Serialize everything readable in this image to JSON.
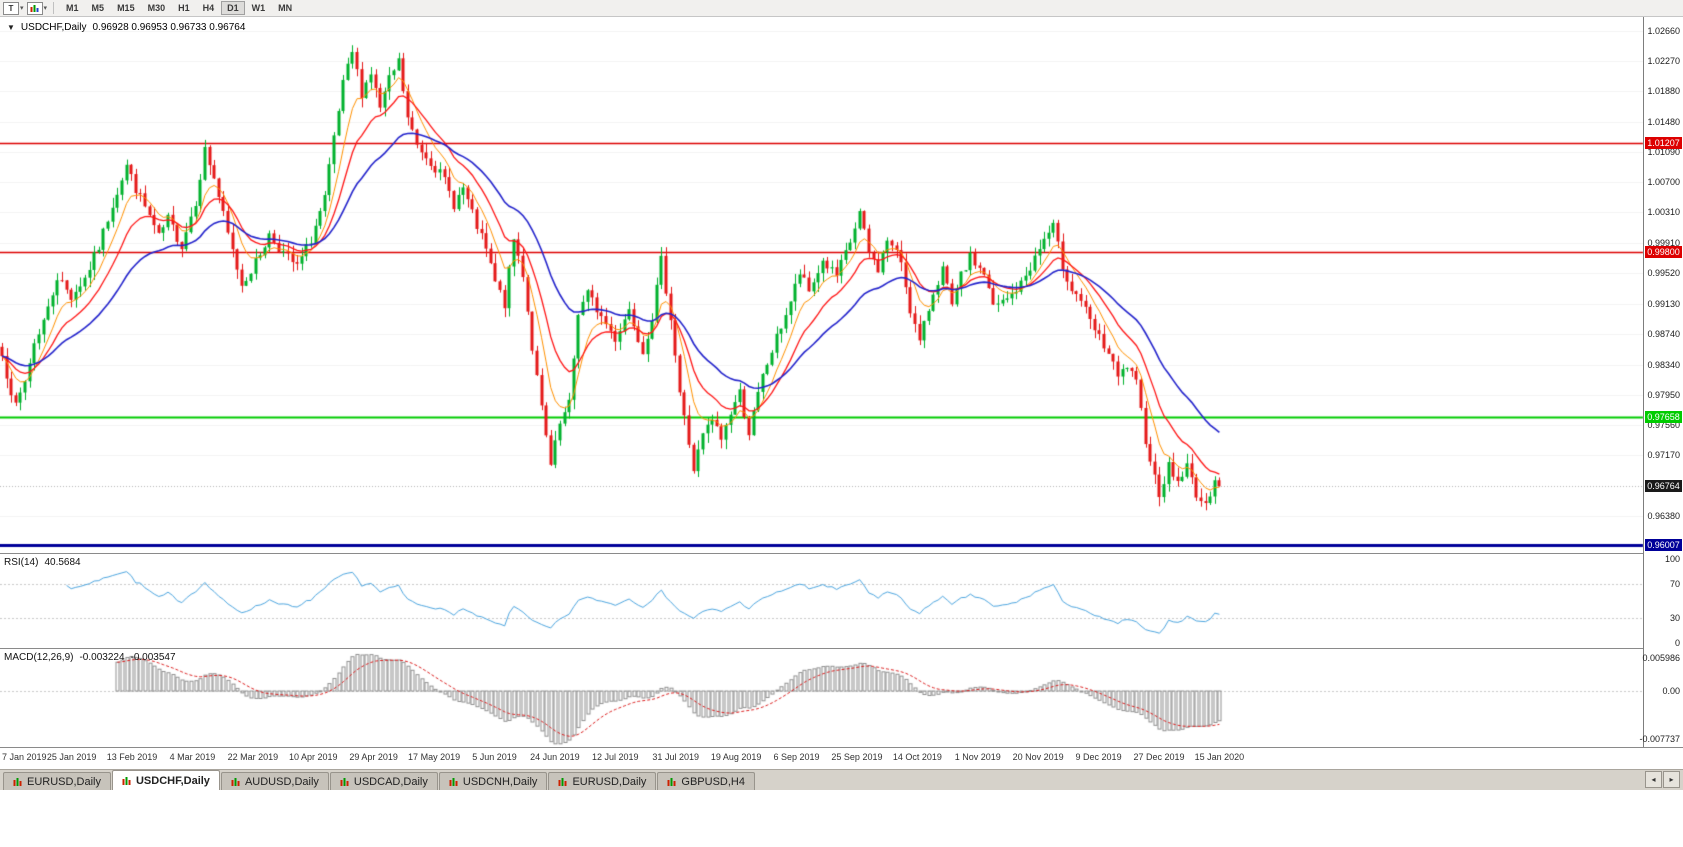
{
  "toolbar": {
    "templates_label": "T",
    "timeframes": [
      {
        "label": "M1",
        "active": false
      },
      {
        "label": "M5",
        "active": false
      },
      {
        "label": "M15",
        "active": false
      },
      {
        "label": "M30",
        "active": false
      },
      {
        "label": "H1",
        "active": false
      },
      {
        "label": "H4",
        "active": false
      },
      {
        "label": "D1",
        "active": true
      },
      {
        "label": "W1",
        "active": false
      },
      {
        "label": "MN",
        "active": false
      }
    ]
  },
  "icons": {
    "one_click_trading": "▼",
    "caret_down": "▾",
    "tab_scroll_left": "◂",
    "tab_scroll_right": "▸"
  },
  "main_chart": {
    "symbol": "USDCHF,Daily",
    "ohlc": "0.96928 0.96953 0.96733 0.96764"
  },
  "rsi_panel": {
    "name": "RSI(14)",
    "value": "40.5684"
  },
  "macd_panel": {
    "name": "MACD(12,26,9)",
    "value_macd": "-0.003224",
    "value_signal": "-0.003547"
  },
  "tabs": [
    {
      "label": "EURUSD,Daily",
      "active": false
    },
    {
      "label": "USDCHF,Daily",
      "active": true
    },
    {
      "label": "AUDUSD,Daily",
      "active": false
    },
    {
      "label": "USDCAD,Daily",
      "active": false
    },
    {
      "label": "USDCNH,Daily",
      "active": false
    },
    {
      "label": "EURUSD,Daily",
      "active": false
    },
    {
      "label": "GBPUSD,H4",
      "active": false
    }
  ],
  "chart_data": [
    {
      "type": "candlestick",
      "title": "USDCHF,Daily",
      "symbol": "USDCHF",
      "timeframe": "Daily",
      "ohlc_current": {
        "open": 0.96928,
        "high": 0.96953,
        "low": 0.96733,
        "close": 0.96764
      },
      "bar_count": 265,
      "y_range": [
        0.959,
        1.0284
      ],
      "y_tick_labels": [
        "1.02660",
        "1.02270",
        "1.01880",
        "1.01480",
        "1.01090",
        "1.00700",
        "1.00310",
        "0.99910",
        "0.99520",
        "0.99130",
        "0.98740",
        "0.98340",
        "0.97950",
        "0.97560",
        "0.97170",
        "0.96380"
      ],
      "x_tick_labels": [
        "7 Jan 2019",
        "25 Jan 2019",
        "13 Feb 2019",
        "4 Mar 2019",
        "22 Mar 2019",
        "10 Apr 2019",
        "29 Apr 2019",
        "17 May 2019",
        "5 Jun 2019",
        "24 Jun 2019",
        "12 Jul 2019",
        "31 Jul 2019",
        "19 Aug 2019",
        "6 Sep 2019",
        "25 Sep 2019",
        "14 Oct 2019",
        "1 Nov 2019",
        "20 Nov 2019",
        "9 Dec 2019",
        "27 Dec 2019",
        "15 Jan 2020"
      ],
      "x_label_first_bar": 2,
      "x_label_bar_step": 13.1,
      "current_price": 0.96764,
      "current_price_label": "0.96764",
      "current_price_badge_color": "#1a1a1a",
      "up_color": "#00b22d",
      "down_color": "#e51919",
      "levels": [
        {
          "price": 1.01207,
          "label": "1.01207",
          "color": "#dd0000",
          "line_width": 1.4
        },
        {
          "price": 0.998,
          "label": "0.99800",
          "color": "#dd0000",
          "line_width": 1.4
        },
        {
          "price": 0.97658,
          "label": "0.97658",
          "color": "#00cc00",
          "line_width": 1.8
        },
        {
          "price": 0.96007,
          "label": "0.96007",
          "color": "#000099",
          "line_width": 3
        }
      ],
      "ma_lines": [
        {
          "period": 7,
          "color": "#ff9100",
          "width": 1
        },
        {
          "period": 14,
          "color": "#ff1616",
          "width": 1.3
        },
        {
          "period": 30,
          "color": "#2424cc",
          "width": 1.6
        }
      ],
      "close_path_anchors": [
        [
          0,
          0.9845
        ],
        [
          3,
          0.9778
        ],
        [
          5,
          0.9812
        ],
        [
          7,
          0.9862
        ],
        [
          10,
          0.9906
        ],
        [
          12,
          0.9948
        ],
        [
          15,
          0.9922
        ],
        [
          18,
          0.9946
        ],
        [
          21,
          0.9986
        ],
        [
          24,
          1.0042
        ],
        [
          27,
          1.0092
        ],
        [
          29,
          1.0062
        ],
        [
          32,
          1.0026
        ],
        [
          34,
          0.9998
        ],
        [
          36,
          1.0022
        ],
        [
          39,
          0.9988
        ],
        [
          42,
          1.0046
        ],
        [
          44,
          1.0112
        ],
        [
          46,
          1.0076
        ],
        [
          49,
          1.0002
        ],
        [
          52,
          0.9938
        ],
        [
          55,
          0.9966
        ],
        [
          58,
          1.0002
        ],
        [
          61,
          0.9978
        ],
        [
          64,
          0.996
        ],
        [
          67,
          0.9996
        ],
        [
          70,
          1.0048
        ],
        [
          72,
          1.0126
        ],
        [
          74,
          1.0196
        ],
        [
          76,
          1.0238
        ],
        [
          78,
          1.0186
        ],
        [
          80,
          1.0212
        ],
        [
          82,
          1.0166
        ],
        [
          84,
          1.0202
        ],
        [
          86,
          1.0226
        ],
        [
          88,
          1.0152
        ],
        [
          90,
          1.0118
        ],
        [
          93,
          1.0098
        ],
        [
          96,
          1.0072
        ],
        [
          98,
          1.0042
        ],
        [
          100,
          1.0062
        ],
        [
          102,
          1.0028
        ],
        [
          105,
          0.9982
        ],
        [
          107,
          0.994
        ],
        [
          109,
          0.9912
        ],
        [
          111,
          0.9996
        ],
        [
          113,
          0.9952
        ],
        [
          115,
          0.9856
        ],
        [
          117,
          0.9776
        ],
        [
          119,
          0.9702
        ],
        [
          121,
          0.9756
        ],
        [
          123,
          0.9782
        ],
        [
          125,
          0.9902
        ],
        [
          127,
          0.9926
        ],
        [
          130,
          0.9896
        ],
        [
          133,
          0.9868
        ],
        [
          136,
          0.9906
        ],
        [
          139,
          0.9852
        ],
        [
          141,
          0.9896
        ],
        [
          143,
          0.9968
        ],
        [
          145,
          0.9896
        ],
        [
          147,
          0.9798
        ],
        [
          149,
          0.9732
        ],
        [
          150,
          0.9698
        ],
        [
          152,
          0.9742
        ],
        [
          154,
          0.9762
        ],
        [
          156,
          0.9738
        ],
        [
          158,
          0.9772
        ],
        [
          160,
          0.9798
        ],
        [
          162,
          0.9746
        ],
        [
          165,
          0.9818
        ],
        [
          168,
          0.9868
        ],
        [
          171,
          0.9916
        ],
        [
          173,
          0.9952
        ],
        [
          175,
          0.9928
        ],
        [
          178,
          0.9968
        ],
        [
          181,
          0.9948
        ],
        [
          184,
          0.9992
        ],
        [
          186,
          1.003
        ],
        [
          188,
          0.9978
        ],
        [
          190,
          0.9958
        ],
        [
          192,
          0.9996
        ],
        [
          195,
          0.9968
        ],
        [
          197,
          0.9906
        ],
        [
          199,
          0.9862
        ],
        [
          202,
          0.9928
        ],
        [
          204,
          0.9958
        ],
        [
          206,
          0.9908
        ],
        [
          208,
          0.9948
        ],
        [
          210,
          0.9972
        ],
        [
          213,
          0.9952
        ],
        [
          215,
          0.9908
        ],
        [
          218,
          0.9918
        ],
        [
          221,
          0.9938
        ],
        [
          224,
          0.9972
        ],
        [
          226,
          0.9996
        ],
        [
          228,
          1.0012
        ],
        [
          230,
          0.9962
        ],
        [
          232,
          0.9932
        ],
        [
          234,
          0.9918
        ],
        [
          236,
          0.9888
        ],
        [
          238,
          0.9868
        ],
        [
          240,
          0.9848
        ],
        [
          242,
          0.9816
        ],
        [
          244,
          0.9832
        ],
        [
          246,
          0.9808
        ],
        [
          248,
          0.9738
        ],
        [
          250,
          0.9688
        ],
        [
          251,
          0.9668
        ],
        [
          253,
          0.9702
        ],
        [
          255,
          0.9682
        ],
        [
          257,
          0.9702
        ],
        [
          259,
          0.9668
        ],
        [
          261,
          0.9648
        ],
        [
          263,
          0.969
        ],
        [
          264,
          0.96764
        ]
      ]
    },
    {
      "type": "line",
      "title": "RSI(14)",
      "period": 14,
      "current_value": 40.5684,
      "levels": [
        70,
        30
      ],
      "y_ticks": [
        100,
        70,
        30,
        0
      ],
      "color": "#4da6e0"
    },
    {
      "type": "macd",
      "title": "MACD(12,26,9)",
      "params": [
        12,
        26,
        9
      ],
      "macd_value": -0.003224,
      "signal_value": -0.003547,
      "y_ticks": [
        "0.005986",
        "0.00",
        "-0.007737"
      ],
      "histogram_color": "#909090",
      "signal_color": "#dd2020"
    }
  ]
}
